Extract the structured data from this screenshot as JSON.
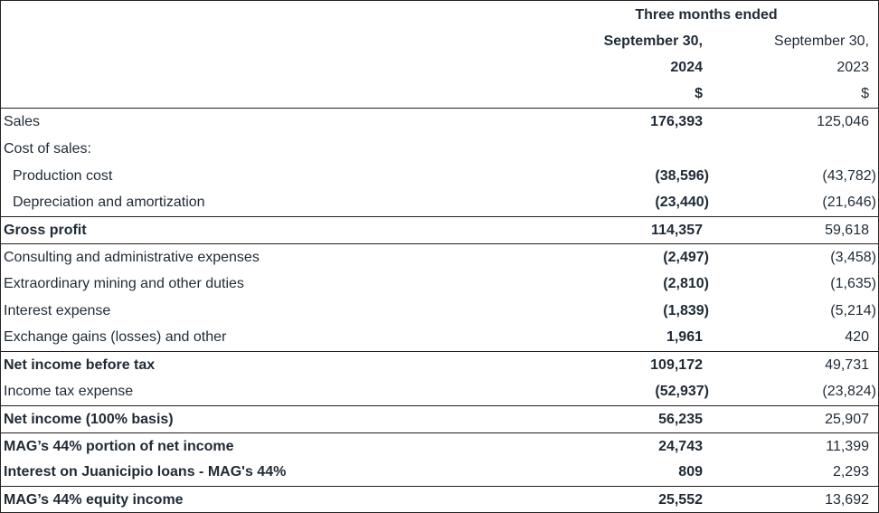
{
  "header": {
    "period_title": "Three months ended",
    "current": {
      "line1": "September 30,",
      "line2": "2024",
      "unit": "$"
    },
    "prior": {
      "line1": "September 30,",
      "line2": "2023",
      "unit": "$"
    }
  },
  "rows": [
    {
      "label": "Sales",
      "current": "176,393",
      "prior": "125,046",
      "bold": false,
      "indent": false,
      "sep": false,
      "neg": false
    },
    {
      "label": "Cost of sales:",
      "current": "",
      "prior": "",
      "bold": false,
      "indent": false,
      "sep": false,
      "neg": false
    },
    {
      "label": "Production cost",
      "current": "(38,596)",
      "prior": "(43,782)",
      "bold": false,
      "indent": true,
      "sep": false,
      "neg": true
    },
    {
      "label": "Depreciation and amortization",
      "current": "(23,440)",
      "prior": "(21,646)",
      "bold": false,
      "indent": true,
      "sep": false,
      "neg": true
    },
    {
      "label": "Gross profit",
      "current": "114,357",
      "prior": "59,618",
      "bold": true,
      "indent": false,
      "sep": true,
      "neg": false
    },
    {
      "label": "Consulting and administrative expenses",
      "current": "(2,497)",
      "prior": "(3,458)",
      "bold": false,
      "indent": false,
      "sep": true,
      "neg": true
    },
    {
      "label": "Extraordinary mining and other duties",
      "current": "(2,810)",
      "prior": "(1,635)",
      "bold": false,
      "indent": false,
      "sep": false,
      "neg": true
    },
    {
      "label": "Interest expense",
      "current": "(1,839)",
      "prior": "(5,214)",
      "bold": false,
      "indent": false,
      "sep": false,
      "neg": true
    },
    {
      "label": "Exchange gains (losses) and other",
      "current": "1,961",
      "prior": "420",
      "bold": false,
      "indent": false,
      "sep": false,
      "neg": false
    },
    {
      "label": "Net income before tax",
      "current": "109,172",
      "prior": "49,731",
      "bold": true,
      "indent": false,
      "sep": true,
      "neg": false
    },
    {
      "label": "Income tax expense",
      "current": "(52,937)",
      "prior": "(23,824)",
      "bold": false,
      "indent": false,
      "sep": false,
      "neg": true
    },
    {
      "label": "Net income (100% basis)",
      "current": "56,235",
      "prior": "25,907",
      "bold": true,
      "indent": false,
      "sep": true,
      "neg": false
    },
    {
      "label": "MAG’s 44% portion of net income",
      "current": "24,743",
      "prior": "11,399",
      "bold": true,
      "indent": false,
      "sep": true,
      "neg": false
    },
    {
      "label": "Interest on Juanicipio loans - MAG's 44%",
      "current": "809",
      "prior": "2,293",
      "bold": true,
      "indent": false,
      "sep": false,
      "neg": false
    },
    {
      "label": "MAG’s 44% equity income",
      "current": "25,552",
      "prior": "13,692",
      "bold": true,
      "indent": false,
      "sep": true,
      "neg": false
    }
  ]
}
